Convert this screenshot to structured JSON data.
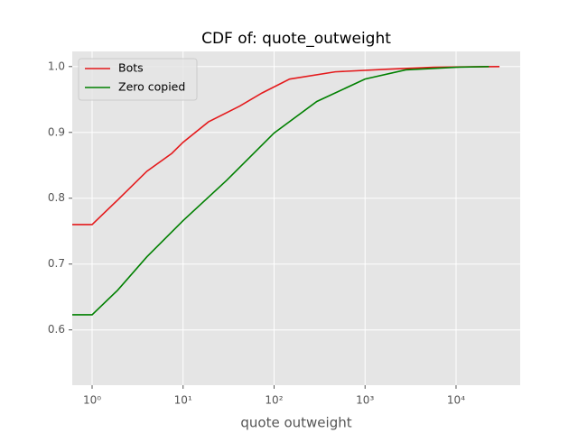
{
  "chart_data": {
    "type": "line",
    "title": "CDF of: quote_outweight",
    "x_label": "quote outweight",
    "x_scale": "log",
    "grid": true,
    "legend": "upper left",
    "xlim": [
      0.605,
      50700
    ],
    "ylim": [
      0.516,
      1.023
    ],
    "xticks": [
      {
        "value": 1,
        "label": "10⁰"
      },
      {
        "value": 10,
        "label": "10¹"
      },
      {
        "value": 100,
        "label": "10²"
      },
      {
        "value": 1000,
        "label": "10³"
      },
      {
        "value": 10000,
        "label": "10⁴"
      }
    ],
    "yticks": [
      0.6,
      0.7,
      0.8,
      0.9,
      {
        "value": 1,
        "label": "1.0"
      }
    ],
    "series": [
      {
        "name": "Bots",
        "color": "#e41a1c",
        "x": [
          0.605,
          1,
          1.9,
          4,
          7.5,
          10,
          19,
          42,
          74,
          148,
          470,
          1800,
          5600,
          30000
        ],
        "values": [
          0.76,
          0.76,
          0.797,
          0.841,
          0.868,
          0.885,
          0.916,
          0.94,
          0.96,
          0.981,
          0.992,
          0.996,
          0.999,
          1.0
        ]
      },
      {
        "name": "Zero copied",
        "color": "#008000",
        "x": [
          0.605,
          1,
          1.9,
          4,
          10,
          30,
          100,
          295,
          1000,
          2800,
          10000,
          23000
        ],
        "values": [
          0.623,
          0.623,
          0.66,
          0.711,
          0.766,
          0.827,
          0.899,
          0.947,
          0.981,
          0.995,
          0.999,
          1.0
        ]
      }
    ]
  }
}
